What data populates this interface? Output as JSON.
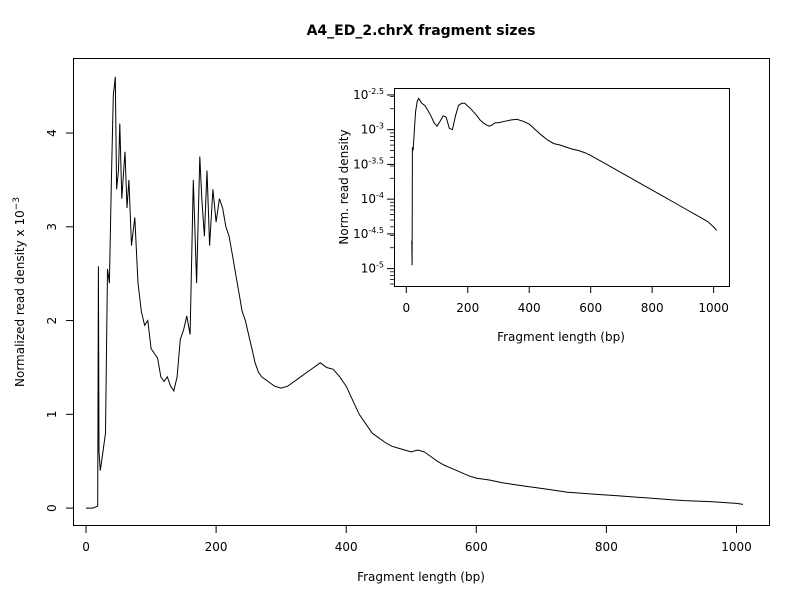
{
  "chart_data": [
    {
      "type": "line",
      "title": "A4_ED_2.chrX fragment sizes",
      "xlabel": "Fragment length (bp)",
      "ylabel_base": "Normalized read density x 10",
      "ylabel_exp": "−3",
      "xlim": [
        -20,
        1050
      ],
      "ylim": [
        -0.18,
        4.8
      ],
      "xticks": [
        0,
        200,
        400,
        600,
        800,
        1000
      ],
      "yticks": [
        0,
        1,
        2,
        3,
        4
      ],
      "xticklabels": [
        "0",
        "200",
        "400",
        "600",
        "800",
        "1000"
      ],
      "yticklabels": [
        "0",
        "1",
        "2",
        "3",
        "4"
      ],
      "series": [
        {
          "x": [
            0,
            10,
            18,
            19,
            20,
            22,
            25,
            30,
            33,
            36,
            39,
            42,
            45,
            47,
            50,
            52,
            55,
            58,
            60,
            63,
            66,
            70,
            75,
            80,
            85,
            90,
            95,
            100,
            105,
            110,
            115,
            120,
            125,
            130,
            135,
            140,
            145,
            150,
            155,
            160,
            165,
            170,
            175,
            178,
            182,
            186,
            190,
            195,
            200,
            205,
            210,
            215,
            220,
            225,
            230,
            235,
            240,
            245,
            250,
            255,
            260,
            265,
            270,
            280,
            290,
            300,
            310,
            320,
            330,
            340,
            350,
            360,
            370,
            380,
            390,
            400,
            410,
            420,
            430,
            440,
            450,
            460,
            470,
            480,
            490,
            500,
            510,
            520,
            530,
            540,
            550,
            560,
            570,
            580,
            590,
            600,
            620,
            640,
            660,
            680,
            700,
            720,
            740,
            760,
            780,
            800,
            820,
            840,
            860,
            880,
            900,
            920,
            940,
            960,
            980,
            1000,
            1010
          ],
          "y": [
            0.0,
            0.0,
            0.02,
            2.58,
            0.6,
            0.4,
            0.55,
            0.8,
            2.55,
            2.4,
            3.5,
            4.4,
            4.6,
            3.4,
            3.6,
            4.1,
            3.3,
            3.6,
            3.8,
            3.2,
            3.5,
            2.8,
            3.1,
            2.4,
            2.1,
            1.95,
            2.0,
            1.7,
            1.65,
            1.6,
            1.4,
            1.35,
            1.4,
            1.3,
            1.25,
            1.4,
            1.8,
            1.9,
            2.05,
            1.85,
            3.5,
            2.4,
            3.75,
            3.3,
            2.9,
            3.6,
            2.8,
            3.4,
            3.05,
            3.3,
            3.2,
            3.0,
            2.9,
            2.7,
            2.5,
            2.3,
            2.1,
            2.0,
            1.85,
            1.7,
            1.55,
            1.45,
            1.4,
            1.35,
            1.3,
            1.28,
            1.3,
            1.35,
            1.4,
            1.45,
            1.5,
            1.55,
            1.5,
            1.48,
            1.4,
            1.3,
            1.15,
            1.0,
            0.9,
            0.8,
            0.75,
            0.7,
            0.66,
            0.64,
            0.62,
            0.6,
            0.62,
            0.6,
            0.55,
            0.5,
            0.46,
            0.43,
            0.4,
            0.37,
            0.34,
            0.32,
            0.3,
            0.27,
            0.25,
            0.23,
            0.21,
            0.19,
            0.17,
            0.16,
            0.15,
            0.14,
            0.13,
            0.12,
            0.11,
            0.1,
            0.09,
            0.08,
            0.075,
            0.07,
            0.06,
            0.05,
            0.04
          ]
        }
      ]
    },
    {
      "type": "line",
      "title": "",
      "xlabel": "Fragment length (bp)",
      "ylabel": "Norm. read density",
      "yscale": "log10",
      "xlim": [
        -40,
        1050
      ],
      "ylim": [
        -5.25,
        -2.4
      ],
      "xticks": [
        0,
        200,
        400,
        600,
        800,
        1000
      ],
      "xticklabels": [
        "0",
        "200",
        "400",
        "600",
        "800",
        "1000"
      ],
      "ytick_exponents": [
        "-2.5",
        "-3",
        "-3.5",
        "-4",
        "-4.5",
        "-5"
      ],
      "ytick_values": [
        -2.5,
        -3,
        -3.5,
        -4,
        -4.5,
        -5
      ],
      "ytick_base": "10",
      "series": [
        {
          "x": [
            18,
            19,
            20,
            22,
            25,
            30,
            35,
            40,
            45,
            50,
            60,
            70,
            80,
            90,
            100,
            110,
            120,
            130,
            140,
            150,
            160,
            170,
            180,
            190,
            200,
            210,
            220,
            230,
            240,
            250,
            260,
            270,
            280,
            290,
            300,
            320,
            340,
            360,
            380,
            400,
            420,
            440,
            460,
            480,
            500,
            520,
            540,
            560,
            580,
            600,
            620,
            640,
            660,
            680,
            700,
            720,
            740,
            760,
            780,
            800,
            820,
            840,
            860,
            880,
            900,
            920,
            940,
            960,
            980,
            1000,
            1010
          ],
          "y": [
            -4.6,
            -4.95,
            -3.25,
            -3.3,
            -3.1,
            -2.75,
            -2.6,
            -2.55,
            -2.58,
            -2.62,
            -2.65,
            -2.72,
            -2.8,
            -2.9,
            -2.95,
            -2.88,
            -2.8,
            -2.82,
            -2.98,
            -3.0,
            -2.8,
            -2.65,
            -2.62,
            -2.62,
            -2.66,
            -2.7,
            -2.75,
            -2.8,
            -2.86,
            -2.9,
            -2.93,
            -2.95,
            -2.93,
            -2.9,
            -2.9,
            -2.88,
            -2.86,
            -2.85,
            -2.88,
            -2.92,
            -3.0,
            -3.08,
            -3.15,
            -3.2,
            -3.22,
            -3.25,
            -3.28,
            -3.3,
            -3.33,
            -3.37,
            -3.42,
            -3.47,
            -3.52,
            -3.57,
            -3.62,
            -3.67,
            -3.72,
            -3.77,
            -3.82,
            -3.87,
            -3.92,
            -3.97,
            -4.02,
            -4.07,
            -4.12,
            -4.17,
            -4.22,
            -4.27,
            -4.32,
            -4.4,
            -4.45
          ]
        }
      ]
    }
  ]
}
